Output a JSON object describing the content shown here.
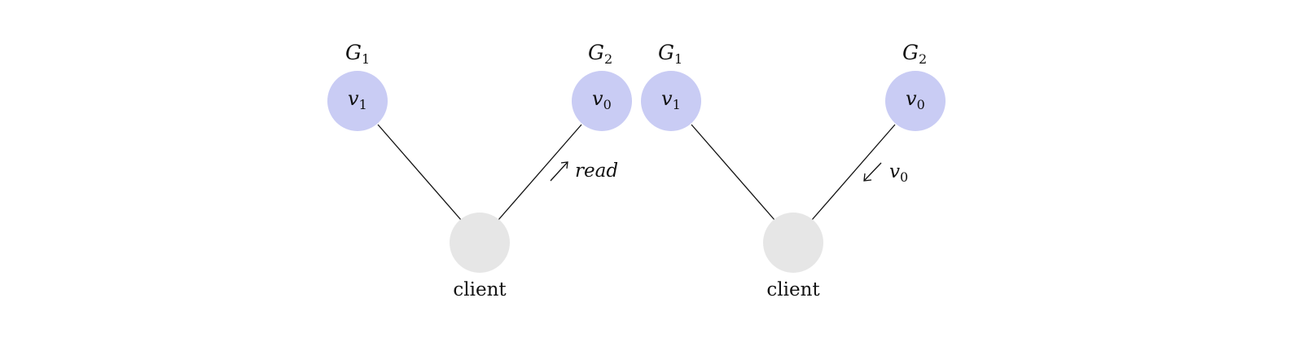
{
  "colors": {
    "server_node_fill": "#c9ccf4",
    "client_node_fill": "#e6e6e6",
    "line": "#111111"
  },
  "panels": [
    {
      "left_group": {
        "name": "G",
        "sub": "1",
        "node_var": "v",
        "node_sub": "1"
      },
      "right_group": {
        "name": "G",
        "sub": "2",
        "node_var": "v",
        "node_sub": "0"
      },
      "client_label": "client",
      "edge_label": {
        "text": "read",
        "arrow": "up-right"
      }
    },
    {
      "left_group": {
        "name": "G",
        "sub": "1",
        "node_var": "v",
        "node_sub": "1"
      },
      "right_group": {
        "name": "G",
        "sub": "2",
        "node_var": "v",
        "node_sub": "0"
      },
      "client_label": "client",
      "edge_label": {
        "var": "v",
        "sub": "0",
        "arrow": "down-left"
      }
    }
  ]
}
